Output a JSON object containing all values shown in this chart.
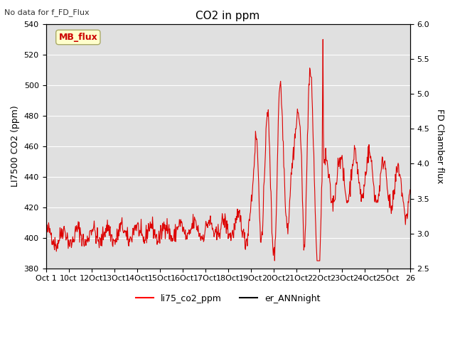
{
  "title": "CO2 in ppm",
  "top_left_text": "No data for f_FD_Flux",
  "ylabel_left": "LI7500 CO2 (ppm)",
  "ylabel_right": "FD Chamber flux",
  "ylim_left": [
    380,
    540
  ],
  "ylim_right": [
    2.5,
    6.0
  ],
  "yticks_left": [
    380,
    400,
    420,
    440,
    460,
    480,
    500,
    520,
    540
  ],
  "yticks_right": [
    2.5,
    3.0,
    3.5,
    4.0,
    4.5,
    5.0,
    5.5,
    6.0
  ],
  "xtick_labels": [
    "Oct 1",
    "10ct",
    "12Oct",
    "13Oct",
    "14Oct",
    "15Oct",
    "16Oct",
    "17Oct",
    "18Oct",
    "19Oct",
    "20Oct",
    "21Oct",
    "22Oct",
    "23Oct",
    "24Oct",
    "25Oct",
    "26"
  ],
  "legend_entries": [
    "li75_co2_ppm",
    "er_ANNnight"
  ],
  "legend_colors": [
    "red",
    "black"
  ],
  "mb_flux_label": "MB_flux",
  "mb_flux_color": "#cc0000",
  "mb_flux_bg": "#ffffcc",
  "background_color": "#e0e0e0",
  "line_color_red": "#dd0000",
  "line_color_black": "#111111",
  "seed": 42,
  "n_points": 800
}
